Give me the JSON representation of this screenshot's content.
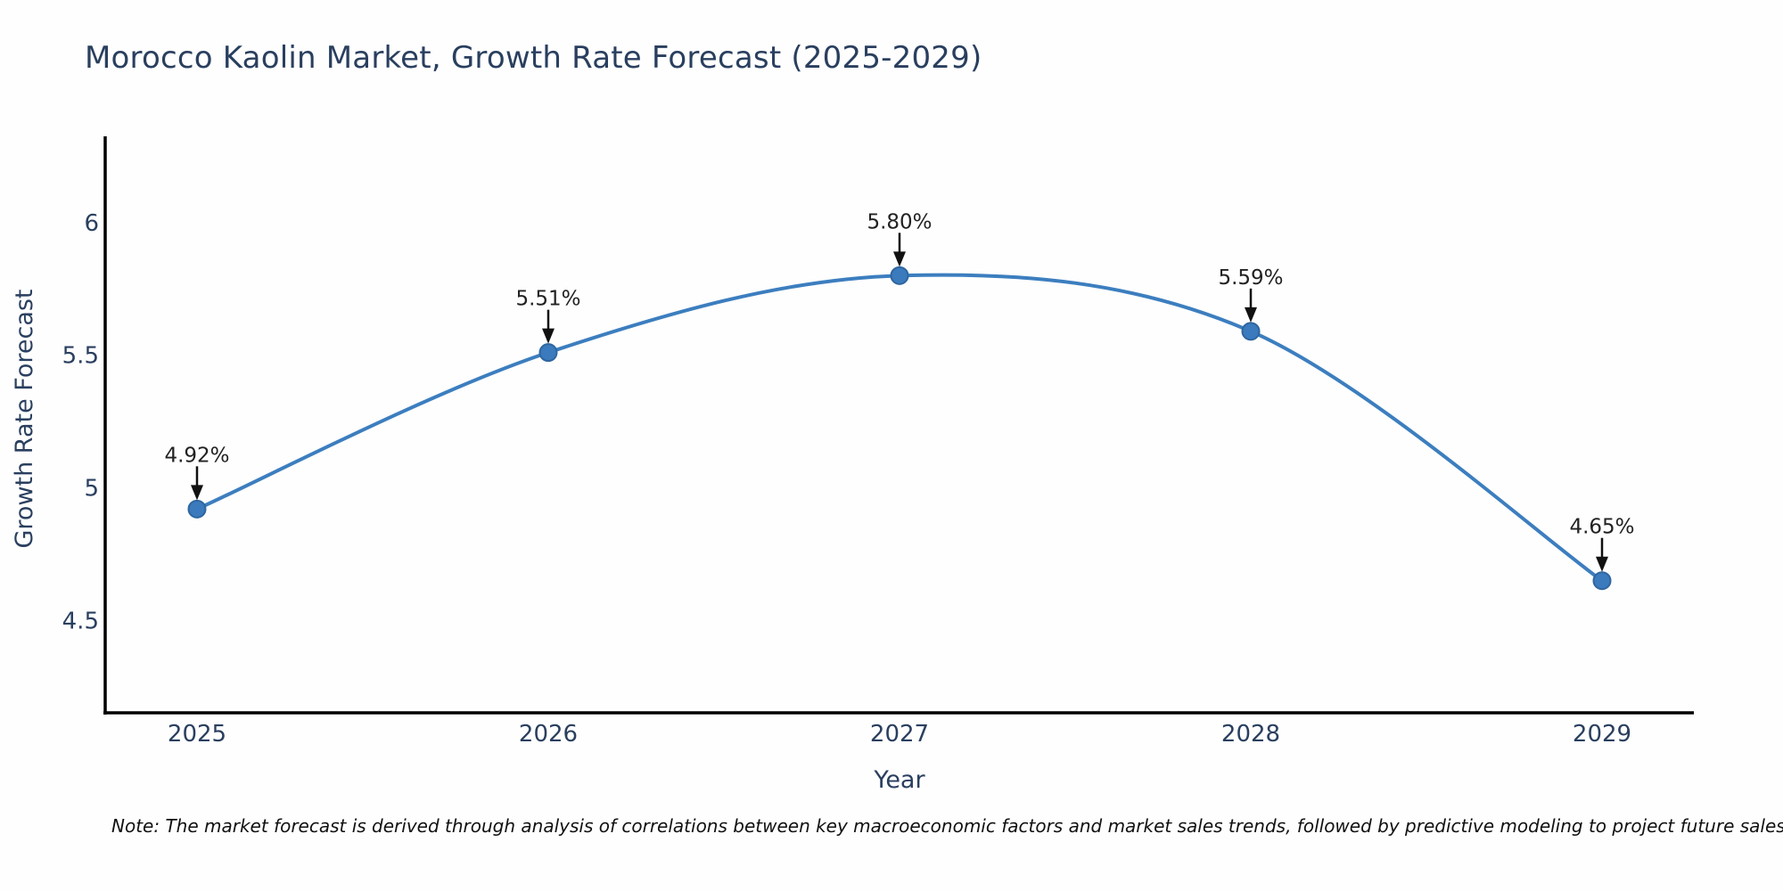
{
  "note": "Note: The market forecast is derived through analysis of correlations between key macroeconomic factors and market sales trends, followed by predictive modeling to project future sales.",
  "chart_data": {
    "type": "line",
    "title": "Morocco Kaolin Market, Growth Rate Forecast (2025-2029)",
    "xlabel": "Year",
    "ylabel": "Growth Rate Forecast",
    "categories": [
      "2025",
      "2026",
      "2027",
      "2028",
      "2029"
    ],
    "x": [
      2025,
      2026,
      2027,
      2028,
      2029
    ],
    "values": [
      4.92,
      5.51,
      5.8,
      5.59,
      4.65
    ],
    "point_labels": [
      "4.92%",
      "5.51%",
      "5.80%",
      "5.59%",
      "4.65%"
    ],
    "line_shape": "spline",
    "grid": false,
    "legend_position": "none",
    "xlim": [
      2024.7386,
      2029.2614
    ],
    "ylim": [
      4.152,
      6.325
    ],
    "yticks": [
      4.5,
      5,
      5.5,
      6
    ],
    "ytick_labels": [
      "4.5",
      "5",
      "5.5",
      "6"
    ],
    "colors": {
      "line": "#3c7ebf",
      "marker_fill": "#3a7abd",
      "marker_edge": "#2f669f",
      "axis_line": "#000000",
      "tick_text": "#2a3f5f",
      "title_text": "#2a3f5f",
      "annotation_text": "#222222",
      "arrow": "#111111",
      "note_text": "#111111",
      "background": "#fefefe"
    }
  }
}
